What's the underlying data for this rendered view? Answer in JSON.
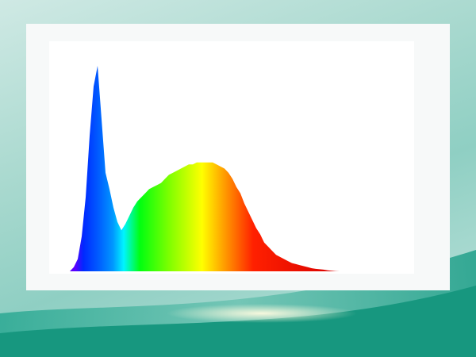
{
  "chart_data": {
    "type": "area",
    "title": "",
    "xlabel": "",
    "ylabel": "",
    "grid": false,
    "legend": "none",
    "ylim": [
      0,
      1
    ],
    "values": [
      0,
      0.02,
      0.06,
      0.17,
      0.36,
      0.66,
      0.9,
      1.0,
      0.74,
      0.48,
      0.4,
      0.31,
      0.24,
      0.2,
      0.23,
      0.27,
      0.31,
      0.34,
      0.36,
      0.38,
      0.4,
      0.41,
      0.42,
      0.43,
      0.45,
      0.47,
      0.48,
      0.49,
      0.5,
      0.51,
      0.52,
      0.52,
      0.53,
      0.53,
      0.53,
      0.53,
      0.53,
      0.52,
      0.51,
      0.5,
      0.48,
      0.45,
      0.41,
      0.38,
      0.33,
      0.29,
      0.25,
      0.21,
      0.18,
      0.14,
      0.12,
      0.1,
      0.08,
      0.07,
      0.06,
      0.05,
      0.04,
      0.035,
      0.03,
      0.025,
      0.02,
      0.015,
      0.012,
      0.01,
      0.008,
      0.005,
      0.003,
      0.001,
      0
    ],
    "spectrum_colors": [
      "#5a00ff",
      "#0028ff",
      "#0060ff",
      "#0098ff",
      "#00f4ff",
      "#00ff10",
      "#80ff00",
      "#ffff00",
      "#ffa000",
      "#ff2000",
      "#d80000"
    ]
  },
  "background": {
    "accent": "#1fa58f",
    "card": "#ffffff"
  }
}
